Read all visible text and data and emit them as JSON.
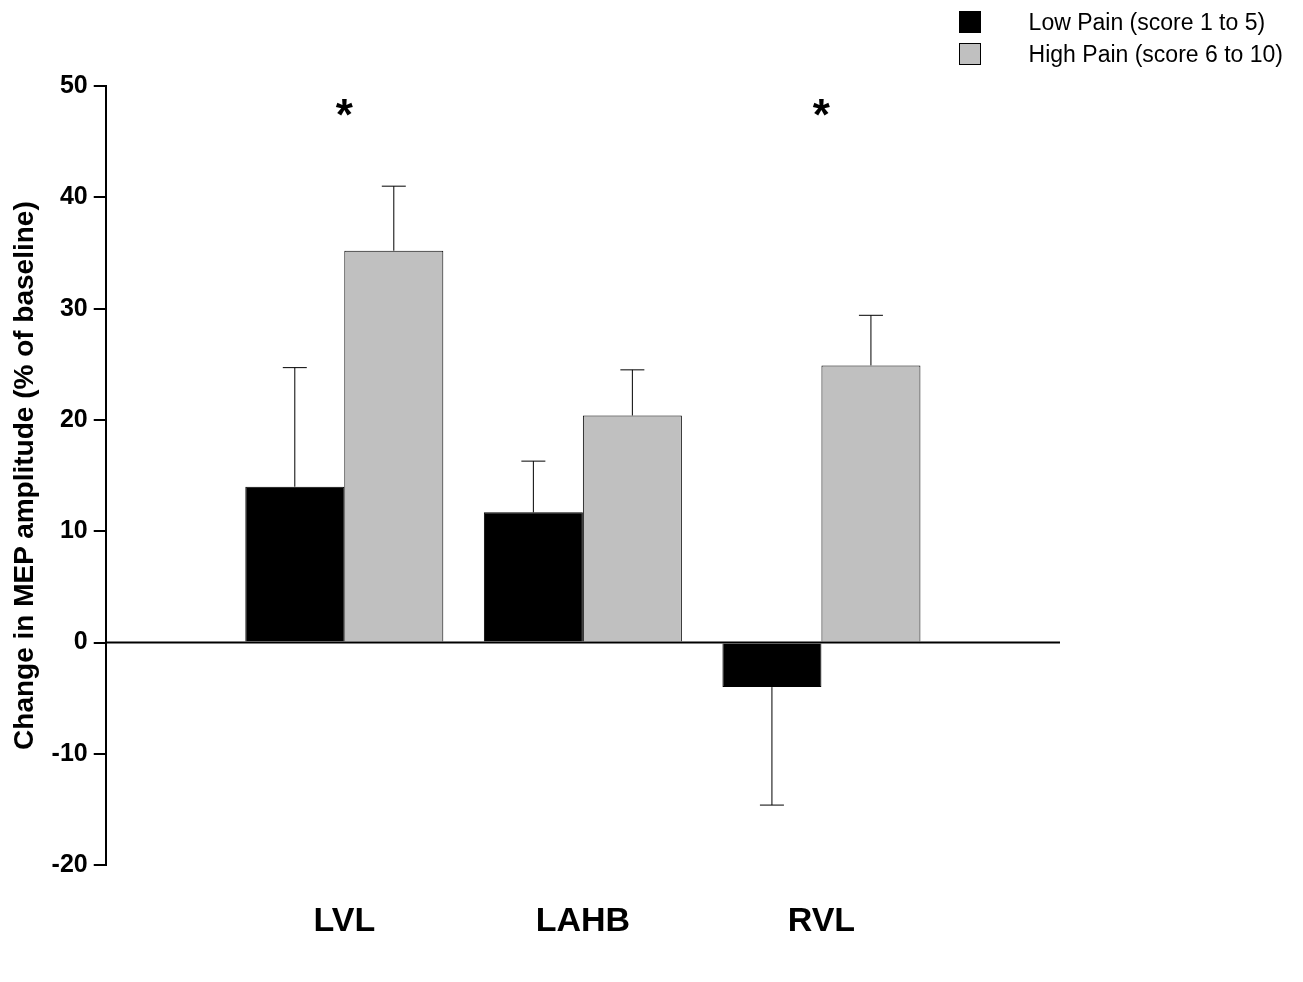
{
  "chart_data": {
    "type": "bar",
    "ylabel": "Change in MEP amplitude (% of baseline)",
    "categories": [
      "LVL",
      "LAHB",
      "RVL"
    ],
    "series": [
      {
        "name": "Low Pain (score 1 to 5)",
        "color": "#000000",
        "values": [
          14.0,
          11.7,
          -4.0
        ],
        "errors": [
          [
            14.0,
            24.7
          ],
          [
            11.7,
            16.3
          ],
          [
            -14.6,
            -4.0
          ]
        ]
      },
      {
        "name": "High Pain (score 6 to 10)",
        "color": "#c0c0c0",
        "values": [
          35.2,
          20.4,
          24.9
        ],
        "errors": [
          [
            35.2,
            41.0
          ],
          [
            20.4,
            24.5
          ],
          [
            24.9,
            29.4
          ]
        ]
      }
    ],
    "ylim": [
      -20,
      50
    ],
    "yticks": [
      -20,
      -10,
      0,
      10,
      20,
      30,
      40,
      50
    ],
    "grid": false,
    "legend": "top right",
    "ref_lines": [
      {
        "axis": "y",
        "value": 0,
        "color": "#000000"
      }
    ],
    "annotations": [
      "*",
      "*"
    ]
  }
}
